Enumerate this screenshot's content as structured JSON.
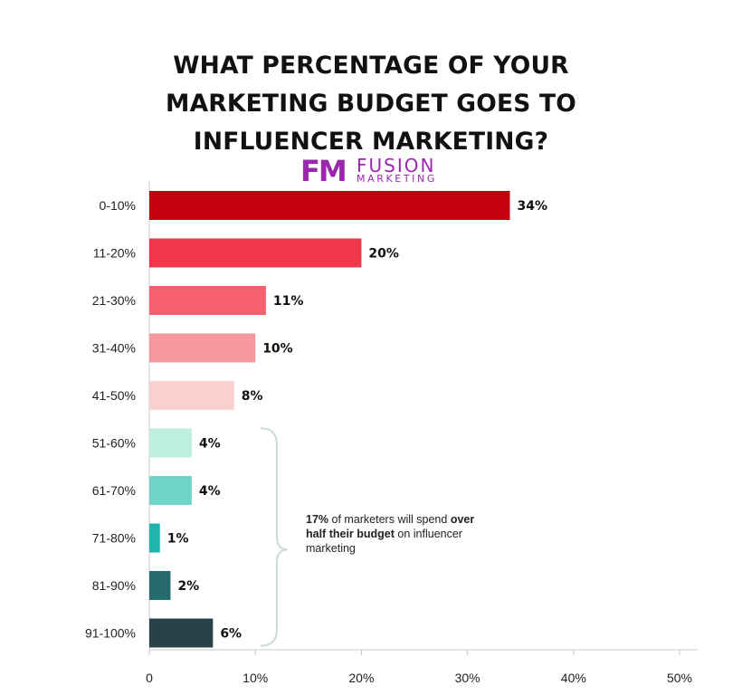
{
  "title_lines": [
    "WHAT PERCENTAGE OF YOUR",
    "MARKETING BUDGET GOES TO",
    "INFLUENCER MARKETING?"
  ],
  "logo": {
    "mark": "FM",
    "word1": "FUSION",
    "word2": "MARKETING",
    "color": "#9b27af"
  },
  "annotation": {
    "bold1": "17%",
    "text1": " of marketers will spend ",
    "bold2": "over half their budget",
    "text2": " on influencer marketing"
  },
  "chart_data": {
    "type": "bar",
    "orientation": "horizontal",
    "title": "WHAT PERCENTAGE OF YOUR MARKETING BUDGET GOES TO INFLUENCER MARKETING?",
    "categories": [
      "0-10%",
      "11-20%",
      "21-30%",
      "31-40%",
      "41-50%",
      "51-60%",
      "61-70%",
      "71-80%",
      "81-90%",
      "91-100%"
    ],
    "values": [
      34,
      20,
      11,
      10,
      8,
      4,
      4,
      1,
      2,
      6
    ],
    "value_labels": [
      "34%",
      "20%",
      "11%",
      "10%",
      "8%",
      "4%",
      "4%",
      "1%",
      "2%",
      "6%"
    ],
    "colors": [
      "#c4000d",
      "#f2374a",
      "#f7616f",
      "#f7979e",
      "#fcd0cd",
      "#bdeee0",
      "#6fd5c9",
      "#21b3ad",
      "#266b6b",
      "#29424a"
    ],
    "xlim": [
      0,
      50
    ],
    "xticks": [
      0,
      10,
      20,
      30,
      40,
      50
    ],
    "xtick_labels": [
      "0",
      "10%",
      "20%",
      "30%",
      "40%",
      "50%"
    ],
    "xlabel": "",
    "ylabel": "",
    "grid": false,
    "legend": "none",
    "bracket_color": "#c9ddd8"
  }
}
